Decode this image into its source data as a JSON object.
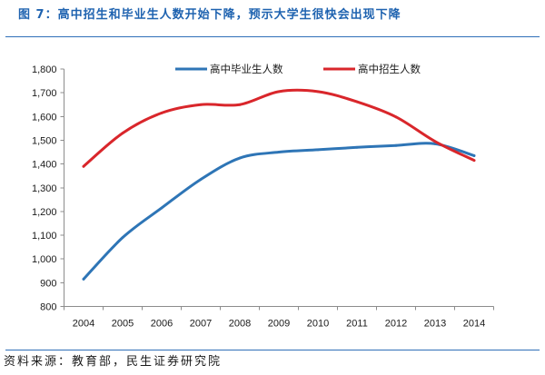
{
  "chart_data": {
    "type": "line",
    "title": "图 7：高中招生和毕业生人数开始下降，预示大学生很快会出现下降",
    "categories": [
      "2004",
      "2005",
      "2006",
      "2007",
      "2008",
      "2009",
      "2010",
      "2011",
      "2012",
      "2013",
      "2014"
    ],
    "series": [
      {
        "name": "高中毕业生人数",
        "color": "#2e75b6",
        "values": [
          915,
          1090,
          1215,
          1335,
          1425,
          1450,
          1460,
          1470,
          1478,
          1485,
          1435
        ]
      },
      {
        "name": "高中招生人数",
        "color": "#d9262b",
        "values": [
          1390,
          1530,
          1615,
          1650,
          1650,
          1705,
          1705,
          1662,
          1598,
          1495,
          1415
        ]
      }
    ],
    "yticks": [
      "800",
      "900",
      "1,000",
      "1,100",
      "1,200",
      "1,300",
      "1,400",
      "1,500",
      "1,600",
      "1,700",
      "1,800"
    ],
    "ylim": [
      800,
      1800
    ],
    "grid": false,
    "legend": "top-center"
  },
  "source": "资料来源：教育部，民生证券研究院",
  "colors": {
    "title": "#1f63b0",
    "rule": "#2f6fb8",
    "axis": "#8c8c8c",
    "text": "#1a1a1a"
  }
}
